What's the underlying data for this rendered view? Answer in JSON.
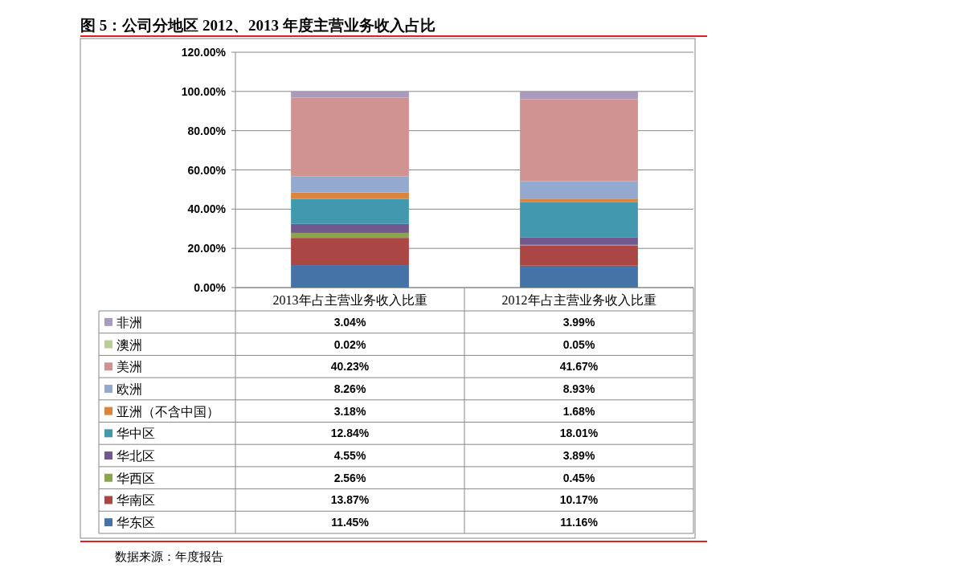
{
  "chart_data": {
    "type": "bar",
    "title": "图 5：公司分地区 2012、2013 年度主营业务收入占比",
    "categories": [
      "2013年占主营业务收入比重",
      "2012年占主营业务收入比重"
    ],
    "stacked": true,
    "grid": "y",
    "legend": "bottom",
    "ylim": [
      0,
      120
    ],
    "yticks": [
      {
        "value": 0,
        "label": "0.00%"
      },
      {
        "value": 20,
        "label": "20.00%"
      },
      {
        "value": 40,
        "label": "40.00%"
      },
      {
        "value": 60,
        "label": "60.00%"
      },
      {
        "value": 80,
        "label": "80.00%"
      },
      {
        "value": 100,
        "label": "100.00%"
      },
      {
        "value": 120,
        "label": "120.00%"
      }
    ],
    "series": [
      {
        "name": "华东区",
        "color": "#4572a7",
        "values": [
          11.45,
          11.16
        ],
        "value_labels": [
          "11.45%",
          "11.16%"
        ]
      },
      {
        "name": "华南区",
        "color": "#aa4643",
        "values": [
          13.87,
          10.17
        ],
        "value_labels": [
          "13.87%",
          "10.17%"
        ]
      },
      {
        "name": "华西区",
        "color": "#89a54e",
        "values": [
          2.56,
          0.45
        ],
        "value_labels": [
          "2.56%",
          "0.45%"
        ]
      },
      {
        "name": "华北区",
        "color": "#71588f",
        "values": [
          4.55,
          3.89
        ],
        "value_labels": [
          "4.55%",
          "3.89%"
        ]
      },
      {
        "name": "华中区",
        "color": "#4198af",
        "values": [
          12.84,
          18.01
        ],
        "value_labels": [
          "12.84%",
          "18.01%"
        ]
      },
      {
        "name": "亚洲（不含中国）",
        "color": "#db843d",
        "values": [
          3.18,
          1.68
        ],
        "value_labels": [
          "3.18%",
          "1.68%"
        ]
      },
      {
        "name": "欧洲",
        "color": "#93a9cf",
        "values": [
          8.26,
          8.93
        ],
        "value_labels": [
          "8.26%",
          "8.93%"
        ]
      },
      {
        "name": "美洲",
        "color": "#d19392",
        "values": [
          40.23,
          41.67
        ],
        "value_labels": [
          "40.23%",
          "41.67%"
        ]
      },
      {
        "name": "澳洲",
        "color": "#b9cd96",
        "values": [
          0.02,
          0.05
        ],
        "value_labels": [
          "0.02%",
          "0.05%"
        ]
      },
      {
        "name": "非洲",
        "color": "#a99bbd",
        "values": [
          3.04,
          3.99
        ],
        "value_labels": [
          "3.04%",
          "3.99%"
        ]
      }
    ],
    "annotations": [
      "数据来源：年度报告"
    ]
  }
}
